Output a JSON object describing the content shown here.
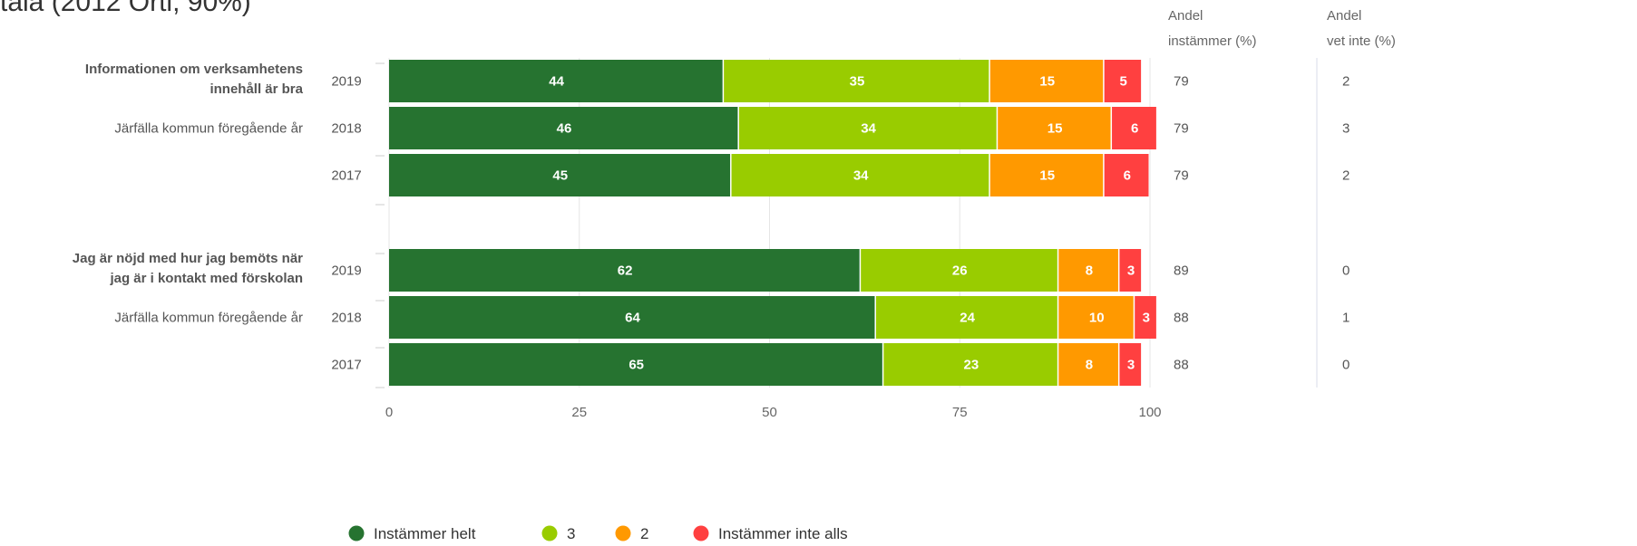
{
  "title_fragment": "tala (2012 Ortl, 90%)",
  "columns": {
    "agree_head": [
      "Andel",
      "instämmer (%)"
    ],
    "dontknow_head": [
      "Andel",
      "vet inte (%)"
    ]
  },
  "colors": {
    "Instämmer helt": "#267330",
    "3": "#99cc00",
    "2": "#ff9900",
    "Instämmer inte alls": "#ff4040"
  },
  "chart_data": {
    "type": "bar",
    "orientation": "horizontal",
    "stacked": true,
    "xlim": [
      0,
      100
    ],
    "xticks": [
      0,
      25,
      50,
      75,
      100
    ],
    "legend_position": "bottom",
    "series_names": [
      "Instämmer helt",
      "3",
      "2",
      "Instämmer inte alls"
    ],
    "groups": [
      {
        "question": [
          "Informationen om verksamhetens",
          "innehåll är bra"
        ],
        "rows": [
          {
            "year": "2019",
            "sublabel": "",
            "values": [
              44,
              35,
              15,
              5
            ],
            "agree": "79",
            "dontknow": "2"
          },
          {
            "year": "2018",
            "sublabel": "Järfälla kommun föregående år",
            "values": [
              46,
              34,
              15,
              6
            ],
            "agree": "79",
            "dontknow": "3"
          },
          {
            "year": "2017",
            "sublabel": "",
            "values": [
              45,
              34,
              15,
              6
            ],
            "agree": "79",
            "dontknow": "2"
          }
        ]
      },
      {
        "question": [
          "Jag är nöjd med hur jag bemöts när",
          "jag är i kontakt med förskolan"
        ],
        "rows": [
          {
            "year": "2019",
            "sublabel": "",
            "values": [
              62,
              26,
              8,
              3
            ],
            "agree": "89",
            "dontknow": "0"
          },
          {
            "year": "2018",
            "sublabel": "Järfälla kommun föregående år",
            "values": [
              64,
              24,
              10,
              3
            ],
            "agree": "88",
            "dontknow": "1"
          },
          {
            "year": "2017",
            "sublabel": "",
            "values": [
              65,
              23,
              8,
              3
            ],
            "agree": "88",
            "dontknow": "0"
          }
        ]
      }
    ]
  }
}
